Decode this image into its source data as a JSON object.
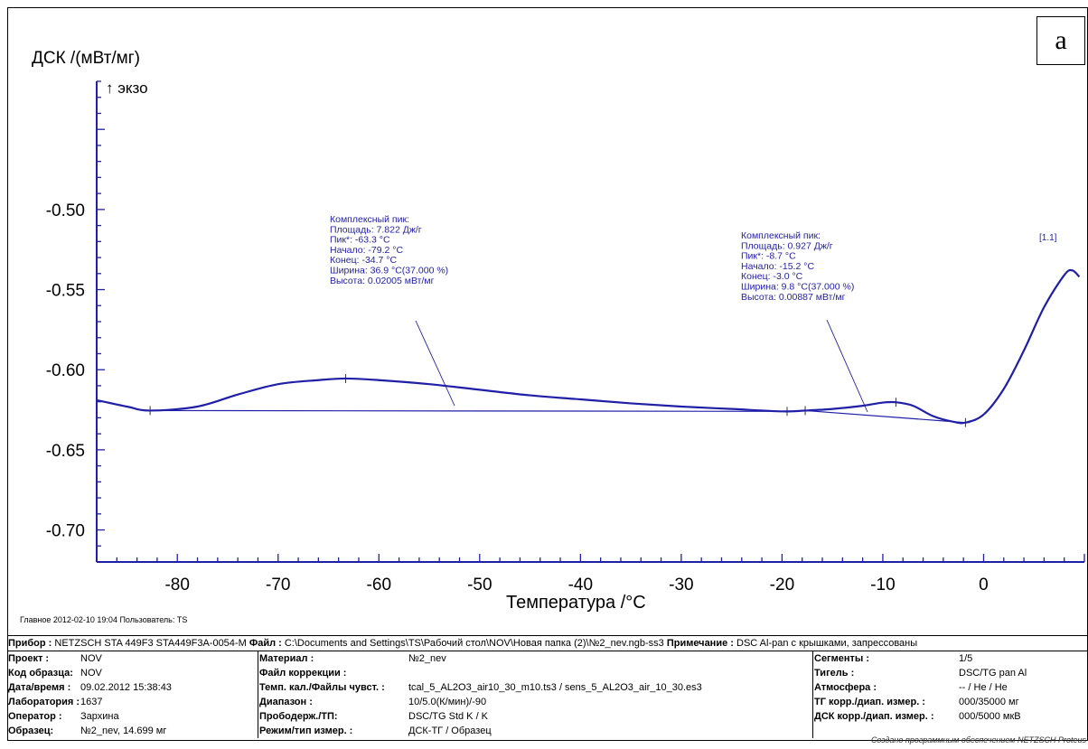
{
  "panel_letter": "a",
  "chart_data": {
    "type": "line",
    "ylabel": "ДСК /(мВт/мг)",
    "exo_label": "↑ экзо",
    "xlabel": "Температура /°C",
    "xlim": [
      -88,
      10
    ],
    "ylim": [
      -0.72,
      -0.42
    ],
    "xticks": [
      "-80",
      "-70",
      "-60",
      "-50",
      "-40",
      "-30",
      "-20",
      "-10",
      "0"
    ],
    "xtick_values": [
      -80,
      -70,
      -60,
      -50,
      -40,
      -30,
      -20,
      -10,
      0
    ],
    "yticks": [
      "-0.50",
      "-0.55",
      "-0.60",
      "-0.65",
      "-0.70"
    ],
    "ytick_values": [
      -0.5,
      -0.55,
      -0.6,
      -0.65,
      -0.7
    ],
    "series": [
      {
        "color": "#1f1fa8",
        "x": [
          -88,
          -85,
          -82.7,
          -78,
          -74,
          -70,
          -66,
          -63.3,
          -60,
          -55,
          -50,
          -45,
          -40,
          -35,
          -30,
          -25,
          -20,
          -17.7,
          -15,
          -12,
          -10,
          -8.7,
          -7,
          -5,
          -3,
          -1.8,
          0,
          2,
          4,
          6,
          8,
          8.8,
          9.5
        ],
        "y": [
          -0.619,
          -0.623,
          -0.6255,
          -0.623,
          -0.6155,
          -0.609,
          -0.6065,
          -0.6055,
          -0.6065,
          -0.609,
          -0.6125,
          -0.616,
          -0.6185,
          -0.621,
          -0.623,
          -0.6245,
          -0.626,
          -0.6255,
          -0.6245,
          -0.6225,
          -0.6205,
          -0.6203,
          -0.6225,
          -0.629,
          -0.6325,
          -0.633,
          -0.628,
          -0.612,
          -0.588,
          -0.561,
          -0.541,
          -0.538,
          -0.542
        ]
      }
    ],
    "peaks": [
      {
        "lines": [
          "Комплексный пик:",
          "Площадь:   7.822 Дж/г",
          "Пик*:   -63.3 °C",
          "Начало:   -79.2 °C",
          "Конец:   -34.7 °C",
          "Ширина:   36.9 °C(37.000 %)",
          "Высота:   0.02005 мВт/мг"
        ],
        "peak_x": -63.3,
        "peak_y": -0.6055,
        "base_x1": -82.7,
        "base_y1": -0.6255,
        "base_x2": -19.5,
        "base_y2": -0.626
      },
      {
        "lines": [
          "Комплексный пик:",
          "Площадь:   0.927 Дж/г",
          "Пик*:   -8.7 °C",
          "Начало:   -15.2 °C",
          "Конец:   -3.0 °C",
          "Ширина:   9.8 °C(37.000 %)",
          "Высота:   0.00887 мВт/мг"
        ],
        "peak_x": -8.7,
        "peak_y": -0.6203,
        "base_x1": -17.7,
        "base_y1": -0.6255,
        "base_x2": -1.8,
        "base_y2": -0.633
      }
    ],
    "segment_label": "[1.1]"
  },
  "footer": {
    "main": "Главное   2012-02-10 19:04   Пользователь: TS"
  },
  "info": {
    "line_label_device": "Прибор :",
    "line_device": "NETZSCH STA 449F3 STA449F3A-0054-M",
    "line_label_file": "Файл :",
    "line_file": "C:\\Documents and Settings\\TS\\Рабочий стол\\NOV\\Новая папка (2)\\№2_nev.ngb-ss3",
    "line_label_note": "Примечание :",
    "line_note": "DSC Al-pan с крышками, запрессованы",
    "col1": [
      {
        "label": "Проект :",
        "value": "NOV"
      },
      {
        "label": "Код образца:",
        "value": "NOV"
      },
      {
        "label": "Дата/время :",
        "value": "09.02.2012 15:38:43"
      },
      {
        "label": "Лаборатория :",
        "value": "1637"
      },
      {
        "label": "Оператор :",
        "value": "Зархина"
      },
      {
        "label": "Образец:",
        "value": "№2_nev, 14.699 мг"
      }
    ],
    "col2": [
      {
        "label": "Материал :",
        "value": "№2_nev"
      },
      {
        "label": "Файл коррекции :",
        "value": ""
      },
      {
        "label": "Темп. кал./Файлы чувст. :",
        "value": "tcal_5_AL2O3_air10_30_m10.ts3 / sens_5_AL2O3_air_10_30.es3"
      },
      {
        "label": "Диапазон :",
        "value": "10/5.0(К/мин)/-90"
      },
      {
        "label": "Прободерж./ТП:",
        "value": "DSC/TG Std K / K"
      },
      {
        "label": "Режим/тип измер. :",
        "value": "ДСК-ТГ / Образец"
      }
    ],
    "col3": [
      {
        "label": "Сегменты :",
        "value": "1/5"
      },
      {
        "label": "Тигель :",
        "value": "DSC/TG pan Al"
      },
      {
        "label": "Атмосфера :",
        "value": "-- / He / He"
      },
      {
        "label": "ТГ корр./диап. измер. :",
        "value": "000/35000 мг"
      },
      {
        "label": "ДСК корр./диап. измер. :",
        "value": "000/5000 мкВ"
      },
      {
        "label": "",
        "value": ""
      }
    ]
  },
  "credit": "Создано программным обеспечением NETZSCH Proteus"
}
